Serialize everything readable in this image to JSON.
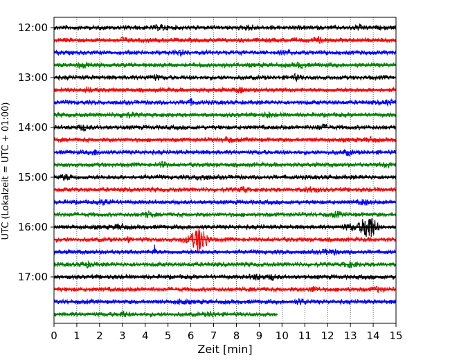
{
  "chart_data": {
    "type": "line",
    "xlabel": "Zeit  [min]",
    "ylabel": "UTC (Lokalzeit = UTC + 01:00)",
    "xlim": [
      0,
      15
    ],
    "x_ticks": [
      "0",
      "1",
      "2",
      "3",
      "4",
      "5",
      "6",
      "7",
      "8",
      "9",
      "10",
      "11",
      "12",
      "13",
      "14",
      "15"
    ],
    "y_ticks": [
      "12:00",
      "13:00",
      "14:00",
      "15:00",
      "16:00",
      "17:00"
    ],
    "y_tick_rows": [
      0,
      4,
      8,
      12,
      16,
      20
    ],
    "grid_x": true,
    "row_interval_minutes": 15,
    "color_cycle": [
      "#000000",
      "#ff0000",
      "#0000ff",
      "#008000"
    ],
    "rows": [
      {
        "start": "12:00",
        "end_minute": 15,
        "bursts": [
          [
            4.7,
            0.25
          ],
          [
            8.6,
            0.2
          ],
          [
            13.4,
            0.2
          ]
        ]
      },
      {
        "start": "12:15",
        "end_minute": 15,
        "bursts": [
          [
            3.0,
            0.2
          ],
          [
            11.6,
            0.2
          ]
        ]
      },
      {
        "start": "12:30",
        "end_minute": 15,
        "bursts": [
          [
            5.6,
            0.2
          ],
          [
            10.2,
            0.2
          ]
        ]
      },
      {
        "start": "12:45",
        "end_minute": 15,
        "bursts": [
          [
            1.2,
            0.2
          ],
          [
            10.8,
            0.2
          ]
        ]
      },
      {
        "start": "13:00",
        "end_minute": 15,
        "bursts": [
          [
            4.4,
            0.25
          ],
          [
            10.6,
            0.2
          ]
        ]
      },
      {
        "start": "13:15",
        "end_minute": 15,
        "bursts": [
          [
            1.5,
            0.2
          ],
          [
            8.2,
            0.2
          ]
        ]
      },
      {
        "start": "13:30",
        "end_minute": 15,
        "bursts": [
          [
            6.0,
            0.2
          ],
          [
            14.7,
            0.2
          ]
        ]
      },
      {
        "start": "13:45",
        "end_minute": 15,
        "bursts": [
          [
            3.2,
            0.3
          ],
          [
            9.4,
            0.2
          ]
        ]
      },
      {
        "start": "14:00",
        "end_minute": 15,
        "bursts": [
          [
            1.3,
            0.25
          ],
          [
            11.8,
            0.25
          ]
        ]
      },
      {
        "start": "14:15",
        "end_minute": 15,
        "bursts": [
          [
            7.6,
            0.2
          ],
          [
            13.9,
            0.2
          ]
        ]
      },
      {
        "start": "14:30",
        "end_minute": 15,
        "bursts": [
          [
            1.8,
            0.25
          ],
          [
            12.9,
            0.2
          ]
        ]
      },
      {
        "start": "14:45",
        "end_minute": 15,
        "bursts": [
          [
            4.8,
            0.2
          ],
          [
            14.6,
            0.2
          ]
        ]
      },
      {
        "start": "15:00",
        "end_minute": 15,
        "bursts": [
          [
            0.5,
            0.3
          ],
          [
            6.5,
            0.25
          ]
        ]
      },
      {
        "start": "15:15",
        "end_minute": 15,
        "bursts": [
          [
            8.3,
            0.2
          ],
          [
            11.3,
            0.3
          ]
        ]
      },
      {
        "start": "15:30",
        "end_minute": 15,
        "bursts": [
          [
            2.3,
            0.25
          ],
          [
            13.6,
            0.2
          ]
        ]
      },
      {
        "start": "15:45",
        "end_minute": 15,
        "bursts": [
          [
            4.1,
            0.2
          ],
          [
            12.4,
            0.2
          ]
        ]
      },
      {
        "start": "16:00",
        "end_minute": 15,
        "bursts": [
          [
            2.9,
            0.3
          ],
          [
            13.8,
            0.9
          ],
          [
            13.0,
            0.4
          ]
        ]
      },
      {
        "start": "16:15",
        "end_minute": 15,
        "bursts": [
          [
            6.4,
            0.85
          ],
          [
            5.9,
            0.35
          ],
          [
            3.2,
            0.5
          ]
        ]
      },
      {
        "start": "16:30",
        "end_minute": 15,
        "bursts": [
          [
            4.4,
            0.5
          ],
          [
            12.1,
            0.3
          ]
        ]
      },
      {
        "start": "16:45",
        "end_minute": 15,
        "bursts": [
          [
            1.4,
            0.25
          ],
          [
            13.0,
            0.3
          ]
        ]
      },
      {
        "start": "17:00",
        "end_minute": 15,
        "bursts": [
          [
            8.9,
            0.3
          ],
          [
            9.6,
            0.2
          ]
        ]
      },
      {
        "start": "17:15",
        "end_minute": 15,
        "bursts": [
          [
            11.4,
            0.2
          ],
          [
            14.2,
            0.2
          ]
        ]
      },
      {
        "start": "17:30",
        "end_minute": 15,
        "bursts": [
          [
            5.6,
            0.2
          ],
          [
            10.8,
            0.25
          ]
        ]
      },
      {
        "start": "17:45",
        "end_minute": 9.8,
        "bursts": [
          [
            3.0,
            0.2
          ],
          [
            6.9,
            0.2
          ]
        ]
      }
    ]
  }
}
